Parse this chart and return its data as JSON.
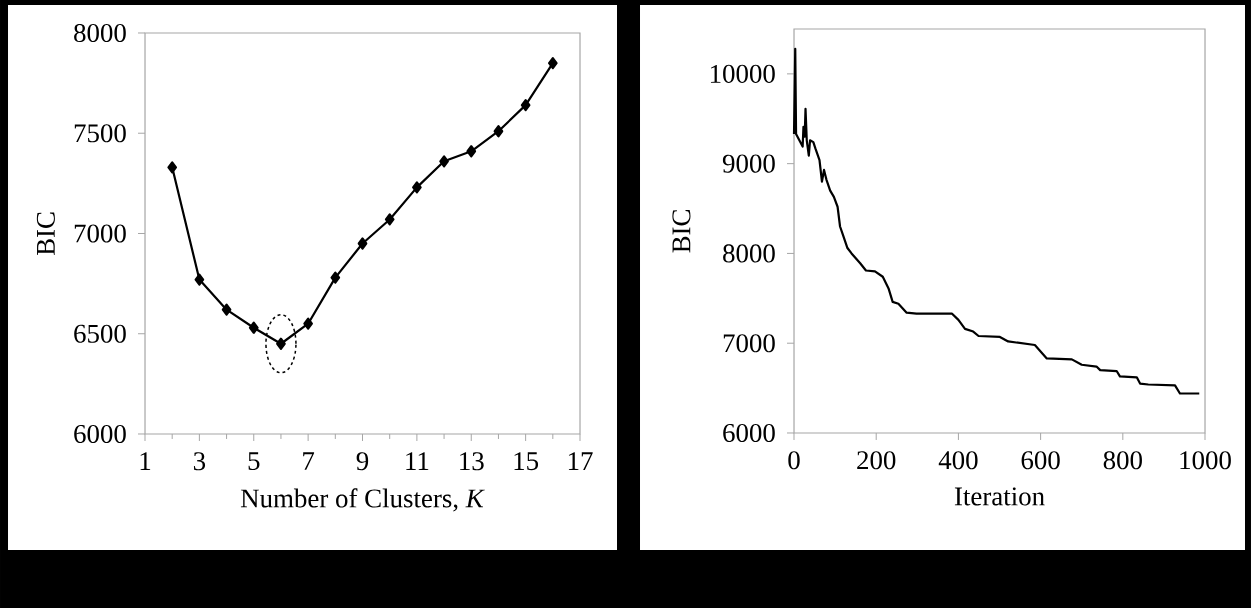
{
  "chart_data": [
    {
      "type": "line",
      "xlabel": "Number of Clusters, *K*",
      "ylabel": "BIC",
      "color": "#000000",
      "marker": "diamond",
      "line_style": "solid",
      "x": [
        2,
        3,
        4,
        5,
        6,
        7,
        8,
        9,
        10,
        11,
        12,
        13,
        14,
        15,
        16
      ],
      "values": [
        7330,
        6770,
        6620,
        6530,
        6450,
        6550,
        6780,
        6950,
        7070,
        7230,
        7360,
        7410,
        7510,
        7640,
        7850
      ],
      "xlim": [
        1,
        17
      ],
      "xticks": [
        1,
        3,
        5,
        7,
        9,
        11,
        13,
        15,
        17
      ],
      "ylim": [
        6000,
        8000
      ],
      "yticks": [
        6000,
        6500,
        7000,
        7500,
        8000
      ]
    },
    {
      "type": "line",
      "xlabel": "Iteration",
      "ylabel": "BIC",
      "color": "#000000",
      "marker": "none",
      "line_style": "solid",
      "x": [
        0,
        3,
        5,
        13,
        21,
        23,
        26,
        28,
        31,
        36,
        39,
        47,
        52,
        62,
        68,
        73,
        79,
        88,
        97,
        106,
        112,
        118,
        130,
        140,
        161,
        175,
        197,
        216,
        230,
        240,
        254,
        274,
        298,
        384,
        400,
        416,
        436,
        449,
        501,
        521,
        586,
        615,
        676,
        700,
        736,
        745,
        785,
        793,
        834,
        842,
        862,
        927,
        939,
        986
      ],
      "values": [
        9330,
        10280,
        9330,
        9260,
        9190,
        9410,
        9300,
        9610,
        9260,
        9090,
        9260,
        9240,
        9170,
        9040,
        8800,
        8930,
        8820,
        8700,
        8630,
        8520,
        8300,
        8220,
        8060,
        8000,
        7890,
        7810,
        7800,
        7740,
        7610,
        7460,
        7440,
        7340,
        7330,
        7330,
        7260,
        7160,
        7130,
        7080,
        7070,
        7020,
        6980,
        6830,
        6820,
        6760,
        6740,
        6700,
        6690,
        6630,
        6620,
        6550,
        6540,
        6530,
        6440,
        6440
      ],
      "xlim": [
        0,
        1000
      ],
      "xticks": [
        0,
        200,
        400,
        600,
        800,
        1000
      ],
      "ylim": [
        6000,
        10500
      ],
      "yticks": [
        6000,
        7000,
        8000,
        9000,
        10000
      ]
    }
  ]
}
